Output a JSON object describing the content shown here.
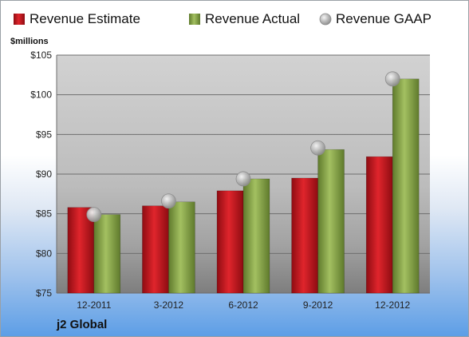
{
  "chart_data": {
    "type": "bar",
    "categories": [
      "12-2011",
      "3-2012",
      "6-2012",
      "9-2012",
      "12-2012"
    ],
    "series": [
      {
        "name": "Revenue Estimate",
        "kind": "bar",
        "color": "#c0141c",
        "values": [
          85.8,
          86.0,
          87.9,
          89.5,
          92.2
        ]
      },
      {
        "name": "Revenue Actual",
        "kind": "bar",
        "color": "#8aa84a",
        "values": [
          84.9,
          86.5,
          89.4,
          93.1,
          102.0
        ]
      },
      {
        "name": "Revenue GAAP",
        "kind": "marker",
        "color": "#b4b4b4",
        "values": [
          84.9,
          86.6,
          89.4,
          93.3,
          102.0
        ]
      }
    ],
    "ylabel": "$millions",
    "ylim": [
      75,
      105
    ],
    "yticks": [
      75,
      80,
      85,
      90,
      95,
      100,
      105
    ],
    "ytick_labels": [
      "$75",
      "$80",
      "$85",
      "$90",
      "$95",
      "$100",
      "$105"
    ],
    "grid": true,
    "legend_position": "top"
  },
  "company": "j2 Global"
}
